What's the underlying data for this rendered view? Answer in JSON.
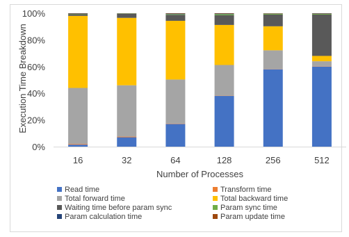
{
  "chart_data": {
    "type": "bar",
    "stacked": true,
    "normalized_percent": true,
    "title": "",
    "xlabel": "Number of Processes",
    "ylabel": "Execution Time Breakdown",
    "ylim": [
      0,
      100
    ],
    "yticks": [
      "0%",
      "20%",
      "40%",
      "60%",
      "80%",
      "100%"
    ],
    "grid": false,
    "legend_position": "bottom",
    "categories": [
      "16",
      "32",
      "64",
      "128",
      "256",
      "512"
    ],
    "series": [
      {
        "name": "Read time",
        "color": "#4472c4",
        "values": [
          1.5,
          7,
          17,
          38,
          58,
          60
        ]
      },
      {
        "name": "Transform time",
        "color": "#ed7d31",
        "values": [
          0.5,
          0.5,
          0.3,
          0.2,
          0.2,
          0.2
        ]
      },
      {
        "name": "Total forward time",
        "color": "#a5a5a5",
        "values": [
          42,
          38.5,
          33,
          23,
          14,
          3.8
        ]
      },
      {
        "name": "Total backward time",
        "color": "#ffc000",
        "values": [
          54,
          50.5,
          44,
          30,
          18,
          4
        ]
      },
      {
        "name": "Waiting time before param sync",
        "color": "#595959",
        "values": [
          1.2,
          3,
          4.5,
          7.3,
          8.8,
          31
        ]
      },
      {
        "name": "Param sync time",
        "color": "#70ad47",
        "values": [
          0.3,
          0.2,
          0.5,
          0.8,
          0.6,
          0.5
        ]
      },
      {
        "name": "Param calculation time",
        "color": "#264478",
        "values": [
          0.3,
          0.2,
          0.4,
          0.4,
          0.2,
          0.3
        ]
      },
      {
        "name": "Param update time",
        "color": "#9e480e",
        "values": [
          0.2,
          0.1,
          0.3,
          0.3,
          0.2,
          0.2
        ]
      }
    ]
  }
}
